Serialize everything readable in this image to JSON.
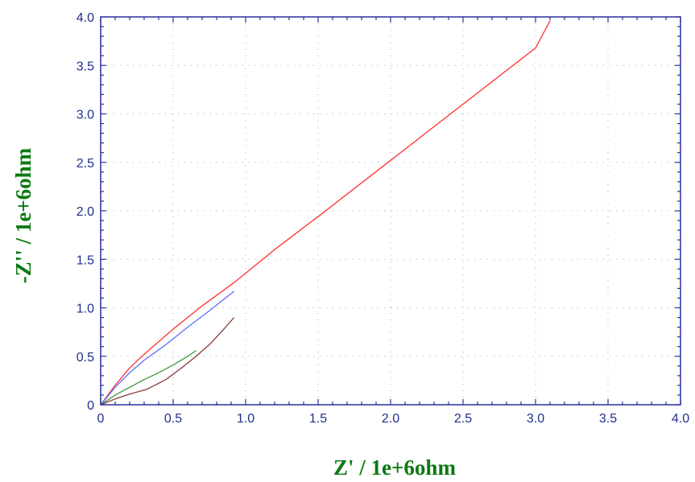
{
  "chart_data": {
    "type": "line",
    "title": "",
    "xlabel": "Z' / 1e+6ohm",
    "ylabel": "-Z'' / 1e+6ohm",
    "xlim": [
      0,
      4.0
    ],
    "ylim": [
      0,
      4.0
    ],
    "xticks": [
      "0",
      "0.5",
      "1.0",
      "1.5",
      "2.0",
      "2.5",
      "3.0",
      "3.5",
      "4.0"
    ],
    "yticks": [
      "0",
      "0.5",
      "1.0",
      "1.5",
      "2.0",
      "2.5",
      "3.0",
      "3.5",
      "4.0"
    ],
    "grid": true,
    "legend": "none",
    "colors": {
      "axis": "#2b2f9f",
      "grid": "#aaaaaa",
      "tick_text": "#1f2f8f",
      "axis_title": "#0a7a12"
    },
    "series": [
      {
        "color": "#ff3030",
        "x": [
          0.0,
          0.05,
          0.1,
          0.2,
          0.3,
          0.5,
          0.7,
          0.92,
          1.2,
          1.5,
          2.0,
          2.5,
          3.0,
          3.1
        ],
        "y": [
          0.0,
          0.1,
          0.2,
          0.38,
          0.52,
          0.78,
          1.02,
          1.26,
          1.6,
          1.94,
          2.52,
          3.1,
          3.68,
          3.96
        ]
      },
      {
        "color": "#5b6cff",
        "x": [
          0.0,
          0.05,
          0.1,
          0.2,
          0.3,
          0.45,
          0.6,
          0.75,
          0.92
        ],
        "y": [
          0.0,
          0.09,
          0.18,
          0.33,
          0.46,
          0.62,
          0.8,
          0.97,
          1.17
        ]
      },
      {
        "color": "#3a9a3a",
        "x": [
          0.0,
          0.1,
          0.2,
          0.3,
          0.4,
          0.5,
          0.6,
          0.66
        ],
        "y": [
          0.0,
          0.1,
          0.18,
          0.26,
          0.33,
          0.41,
          0.5,
          0.56
        ]
      },
      {
        "color": "#8b3a3a",
        "x": [
          0.0,
          0.1,
          0.2,
          0.32,
          0.45,
          0.55,
          0.65,
          0.75,
          0.85,
          0.92
        ],
        "y": [
          0.0,
          0.06,
          0.11,
          0.16,
          0.26,
          0.37,
          0.49,
          0.62,
          0.78,
          0.9
        ]
      }
    ]
  }
}
